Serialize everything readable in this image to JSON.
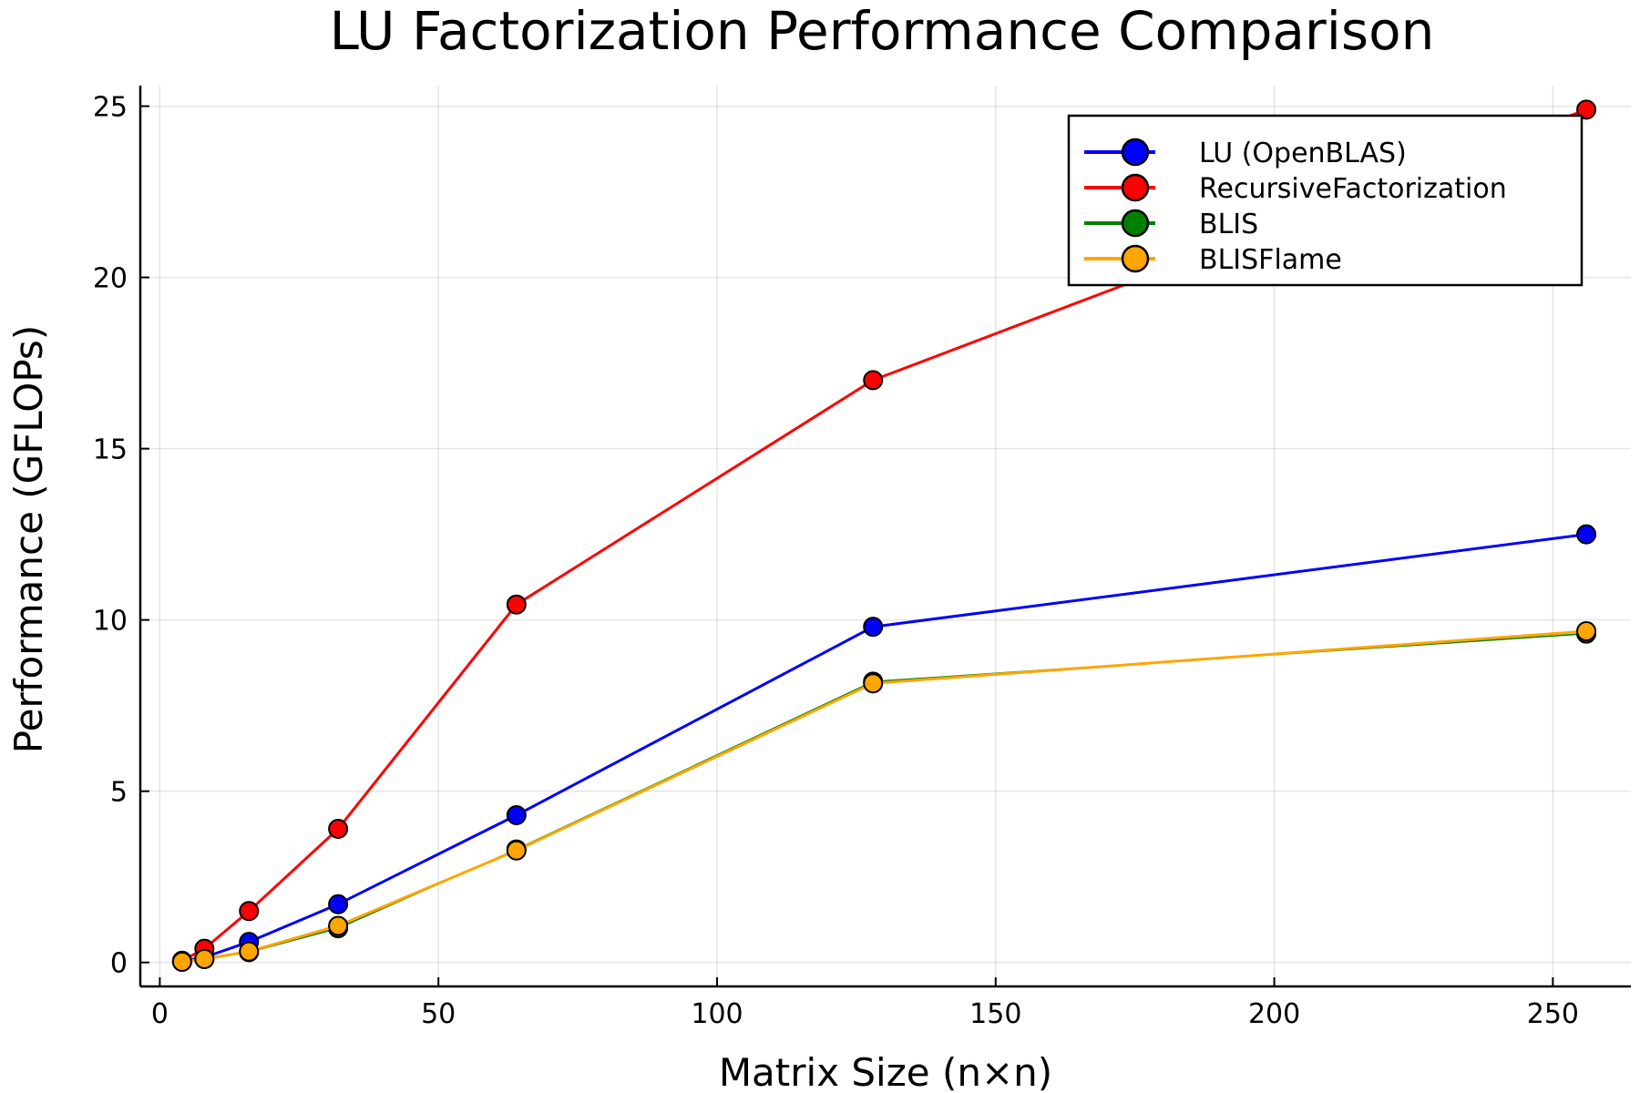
{
  "chart_data": {
    "type": "line",
    "title": "LU Factorization Performance Comparison",
    "xlabel": "Matrix Size (n×n)",
    "ylabel": "Performance (GFLOPs)",
    "xlim": [
      -3.5,
      264
    ],
    "ylim": [
      -0.7,
      25.6
    ],
    "xticks": [
      0,
      50,
      100,
      150,
      200,
      250
    ],
    "yticks": [
      0,
      5,
      10,
      15,
      20,
      25
    ],
    "grid": true,
    "legend_position": "top-right",
    "x": [
      4,
      8,
      16,
      32,
      64,
      128,
      256
    ],
    "series": [
      {
        "name": "LU (OpenBLAS)",
        "color": "#0000ff",
        "line_width": 3,
        "values": [
          0.03,
          0.15,
          0.6,
          1.7,
          4.3,
          9.8,
          12.5
        ]
      },
      {
        "name": "RecursiveFactorization",
        "color": "#ff0000",
        "line_width": 3,
        "values": [
          0.05,
          0.4,
          1.5,
          3.9,
          10.45,
          17.0,
          24.9
        ]
      },
      {
        "name": "BLIS",
        "color": "#008000",
        "line_width": 1.6,
        "values": [
          0.02,
          0.1,
          0.3,
          1.0,
          3.3,
          8.2,
          9.6
        ]
      },
      {
        "name": "BLISFlame",
        "color": "#ffa500",
        "line_width": 3,
        "values": [
          0.02,
          0.1,
          0.32,
          1.07,
          3.27,
          8.15,
          9.67
        ]
      }
    ]
  }
}
